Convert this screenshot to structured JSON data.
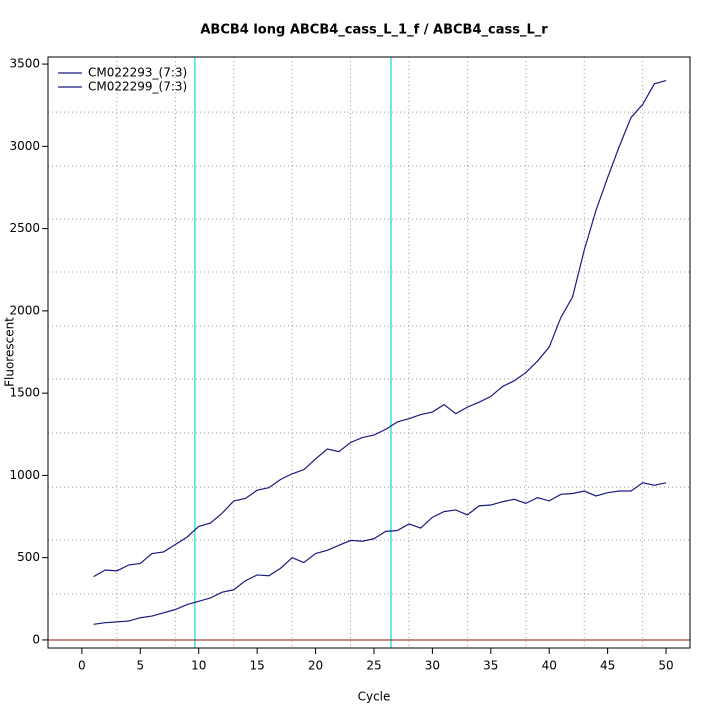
{
  "chart_data": {
    "type": "line",
    "title": "ABCB4 long ABCB4_cass_L_1_f / ABCB4_cass_L_r",
    "x_label": "Cycle",
    "y_label": "Fluorescent",
    "x": [
      1,
      2,
      3,
      4,
      5,
      6,
      7,
      8,
      9,
      10,
      11,
      12,
      13,
      14,
      15,
      16,
      17,
      18,
      19,
      20,
      21,
      22,
      23,
      24,
      25,
      26,
      27,
      28,
      29,
      30,
      31,
      32,
      33,
      34,
      35,
      36,
      37,
      38,
      39,
      40,
      41,
      42,
      43,
      44,
      45,
      46,
      47,
      48,
      49,
      50
    ],
    "series": [
      {
        "name": "CM022293_(7:3)",
        "color": "#1a1a80",
        "values": [
          385,
          425,
          420,
          455,
          465,
          525,
          535,
          580,
          625,
          690,
          710,
          770,
          845,
          860,
          910,
          925,
          975,
          1010,
          1035,
          1100,
          1160,
          1145,
          1200,
          1230,
          1245,
          1280,
          1325,
          1345,
          1370,
          1385,
          1430,
          1375,
          1415,
          1445,
          1480,
          1540,
          1575,
          1625,
          1695,
          1780,
          1960,
          2085,
          2370,
          2610,
          2810,
          3000,
          3175,
          3255,
          3380,
          3400
        ]
      },
      {
        "name": "CM022299_(7:3)",
        "color": "#1a1a80",
        "values": [
          95,
          105,
          110,
          115,
          135,
          145,
          165,
          185,
          215,
          235,
          255,
          290,
          305,
          360,
          395,
          390,
          435,
          500,
          470,
          525,
          545,
          575,
          605,
          600,
          615,
          660,
          665,
          705,
          680,
          745,
          780,
          790,
          760,
          815,
          820,
          840,
          855,
          830,
          865,
          845,
          885,
          890,
          905,
          875,
          895,
          905,
          905,
          955,
          940,
          955
        ]
      }
    ],
    "xlim": [
      -2.9,
      52.05
    ],
    "ylim": [
      -49,
      3543
    ],
    "xticks": [
      0,
      5,
      10,
      15,
      20,
      25,
      30,
      35,
      40,
      45,
      50
    ],
    "yticks": [
      0,
      500,
      1000,
      1500,
      2000,
      2500,
      3000,
      3500
    ],
    "xgrid": [
      3,
      8,
      13,
      18,
      23,
      28,
      33,
      38,
      43,
      48
    ],
    "ygrid": [
      279,
      607,
      929,
      1258,
      1586,
      1908,
      2236,
      2558,
      2880,
      3208
    ],
    "vlines": [
      9.67,
      26.46
    ],
    "vline_color": "#40e0e0",
    "hline": 0,
    "hline_color": "#8b1a1a",
    "grid": true,
    "legend": "top-left"
  }
}
